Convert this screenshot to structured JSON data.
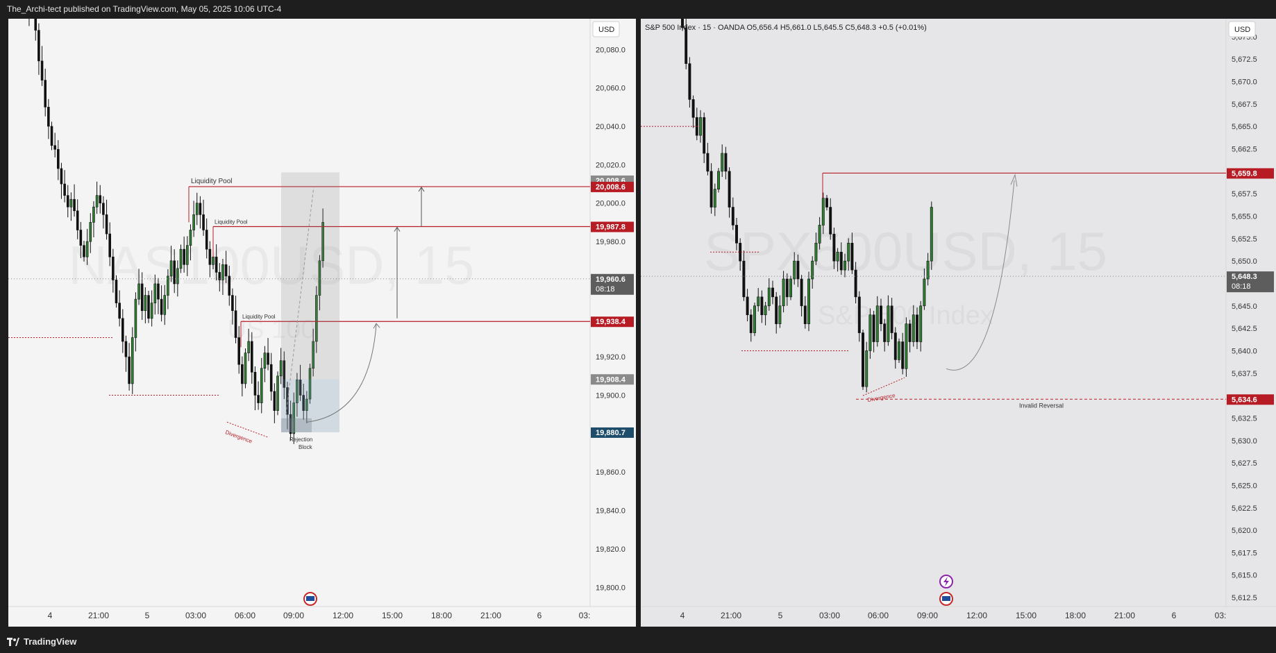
{
  "header": {
    "text": "The_Archi-tect published on TradingView.com, May 05, 2025 10:06 UTC-4"
  },
  "footer": {
    "brand": "TradingView",
    "logo_icon": "tradingview-logo-icon"
  },
  "colors": {
    "up": "#2f7d32",
    "down": "#111111",
    "level": "#b71c25",
    "price_gray": "#707070",
    "navy": "#1e4d6b"
  },
  "chart_data": [
    {
      "type": "candlestick",
      "watermark": "NAS100USD, 15",
      "watermark_sub": "US 100",
      "currency": "USD",
      "y_ticks": [
        20080.0,
        20060.0,
        20040.0,
        20020.0,
        20000.0,
        19980.0,
        19920.0,
        19900.0,
        19860.0,
        19840.0,
        19820.0,
        19800.0
      ],
      "y_tick_labels": [
        "20,080.0",
        "20,060.0",
        "20,040.0",
        "20,020.0",
        "20,000.0",
        "19,980.0",
        "19,920.0",
        "19,900.0",
        "19,860.0",
        "19,840.0",
        "19,820.0",
        "19,800.0"
      ],
      "ylim": [
        19790,
        20096
      ],
      "x_ticks": [
        "4",
        "21:00",
        "5",
        "03:00",
        "06:00",
        "09:00",
        "12:00",
        "15:00",
        "18:00",
        "21:00",
        "6",
        "03:"
      ],
      "price_labels": [
        {
          "value": 20008.6,
          "text": "20,008.6",
          "style": "gray"
        },
        {
          "value": 20008.6,
          "text": "20,008.6",
          "style": "red"
        },
        {
          "value": 19987.8,
          "text": "19,987.8",
          "style": "red"
        },
        {
          "value": 19960.6,
          "text": "19,960.6",
          "sub": "08:18",
          "style": "dark"
        },
        {
          "value": 19938.4,
          "text": "19,938.4",
          "style": "red"
        },
        {
          "value": 19908.4,
          "text": "19,908.4",
          "style": "gray"
        },
        {
          "value": 19880.7,
          "text": "19,880.7",
          "style": "navy"
        }
      ],
      "annotations": [
        "Liquidity Pool",
        "Liquidity Pool",
        "Liquidity Pool",
        "Divergence",
        "Rejection",
        "Block"
      ],
      "candles_close": [
        20115,
        20112,
        20108,
        20100,
        20104,
        20090,
        20074,
        20064,
        20050,
        20040,
        20030,
        20028,
        20018,
        20010,
        20004,
        19998,
        20002,
        19996,
        19986,
        19978,
        19972,
        19980,
        19990,
        19998,
        20004,
        20000,
        19994,
        19984,
        19972,
        19960,
        19948,
        19940,
        19928,
        19920,
        19906,
        19930,
        19950,
        19958,
        19944,
        19952,
        19940,
        19948,
        19958,
        19950,
        19942,
        19952,
        19962,
        19970,
        19958,
        19966,
        19976,
        19968,
        19978,
        19986,
        19994,
        20000,
        19994,
        19986,
        19976,
        19968,
        19972,
        19964,
        19960,
        19968,
        19962,
        19952,
        19944,
        19930,
        19916,
        19906,
        19922,
        19928,
        19912,
        19900,
        19896,
        19914,
        19922,
        19916,
        19902,
        19892,
        19910,
        19918,
        19904,
        19890,
        19880,
        19896,
        19908,
        19900,
        19892,
        19898,
        19914,
        19928,
        19952,
        19970,
        19990
      ]
    },
    {
      "type": "candlestick",
      "header": "S&P 500 Index · 15 · OANDA  O5,656.4  H5,661.0  L5,645.5  C5,648.3  +0.5 (+0.01%)",
      "watermark": "SPX500USD, 15",
      "watermark_sub": "S&P 500 Index",
      "currency": "USD",
      "y_ticks": [
        5675.0,
        5672.5,
        5670.0,
        5667.5,
        5665.0,
        5662.5,
        5657.5,
        5655.0,
        5652.5,
        5650.0,
        5645.0,
        5642.5,
        5640.0,
        5637.5,
        5632.5,
        5630.0,
        5627.5,
        5625.0,
        5622.5,
        5620.0,
        5617.5,
        5615.0,
        5612.5
      ],
      "y_tick_labels": [
        "5,675.0",
        "5,672.5",
        "5,670.0",
        "5,667.5",
        "5,665.0",
        "5,662.5",
        "5,657.5",
        "5,655.0",
        "5,652.5",
        "5,650.0",
        "5,645.0",
        "5,642.5",
        "5,640.0",
        "5,637.5",
        "5,632.5",
        "5,630.0",
        "5,627.5",
        "5,625.0",
        "5,622.5",
        "5,620.0",
        "5,617.5",
        "5,615.0",
        "5,612.5"
      ],
      "ylim": [
        5611.5,
        5677.0
      ],
      "x_ticks": [
        "4",
        "21:00",
        "5",
        "03:00",
        "06:00",
        "09:00",
        "12:00",
        "15:00",
        "18:00",
        "21:00",
        "6",
        "03:"
      ],
      "price_labels": [
        {
          "value": 5659.8,
          "text": "5,659.8",
          "style": "red"
        },
        {
          "value": 5648.3,
          "text": "5,648.3",
          "sub": "08:18",
          "style": "dark"
        },
        {
          "value": 5634.6,
          "text": "5,634.6",
          "style": "red"
        }
      ],
      "annotations": [
        "Divergence",
        "Invalid Reversal"
      ],
      "candles_close": [
        5676,
        5672,
        5668,
        5666,
        5664,
        5666,
        5662,
        5660,
        5656,
        5658,
        5660,
        5662,
        5660,
        5656,
        5654,
        5652,
        5650,
        5646,
        5644,
        5642,
        5645,
        5646,
        5644,
        5645,
        5647,
        5646,
        5643,
        5645,
        5648,
        5646,
        5648,
        5650,
        5648,
        5645,
        5643,
        5648,
        5650,
        5652,
        5654,
        5657,
        5656,
        5653,
        5650,
        5651,
        5649,
        5650,
        5652,
        5649,
        5646,
        5642,
        5636,
        5640,
        5644,
        5641,
        5645,
        5643,
        5641,
        5645,
        5642,
        5639,
        5641,
        5638,
        5643,
        5641,
        5644,
        5641,
        5645,
        5648,
        5650,
        5656
      ]
    }
  ]
}
